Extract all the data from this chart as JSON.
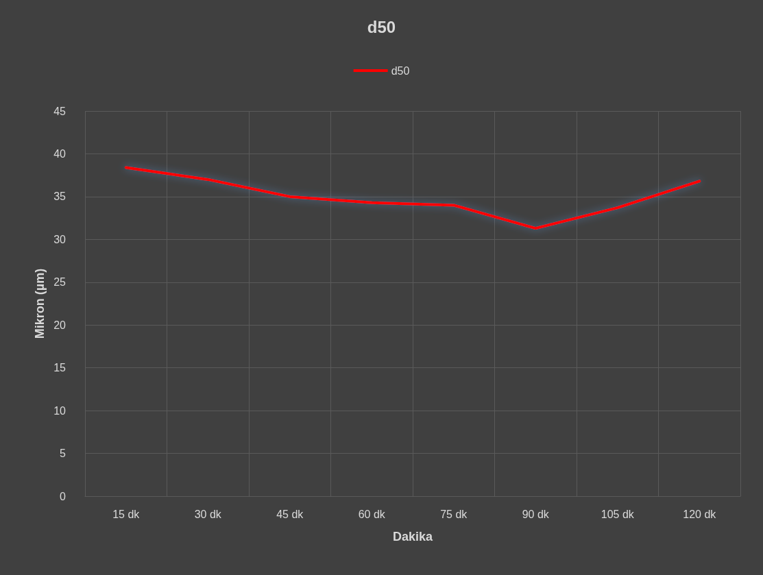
{
  "chart_data": {
    "type": "line",
    "title": "d50",
    "xlabel": "Dakika",
    "ylabel": "Mikron (µm)",
    "categories": [
      "15 dk",
      "30 dk",
      "45 dk",
      "60 dk",
      "75 dk",
      "90 dk",
      "105 dk",
      "120 dk"
    ],
    "series": [
      {
        "name": "d50",
        "color": "#ff0000",
        "values": [
          38.4,
          37.0,
          35.0,
          34.3,
          34.0,
          31.3,
          33.7,
          36.8
        ]
      }
    ],
    "ylim": [
      0,
      45
    ],
    "yticks": [
      0,
      5,
      10,
      15,
      20,
      25,
      30,
      35,
      40,
      45
    ],
    "grid": true,
    "legend": "top",
    "marker": "none"
  }
}
